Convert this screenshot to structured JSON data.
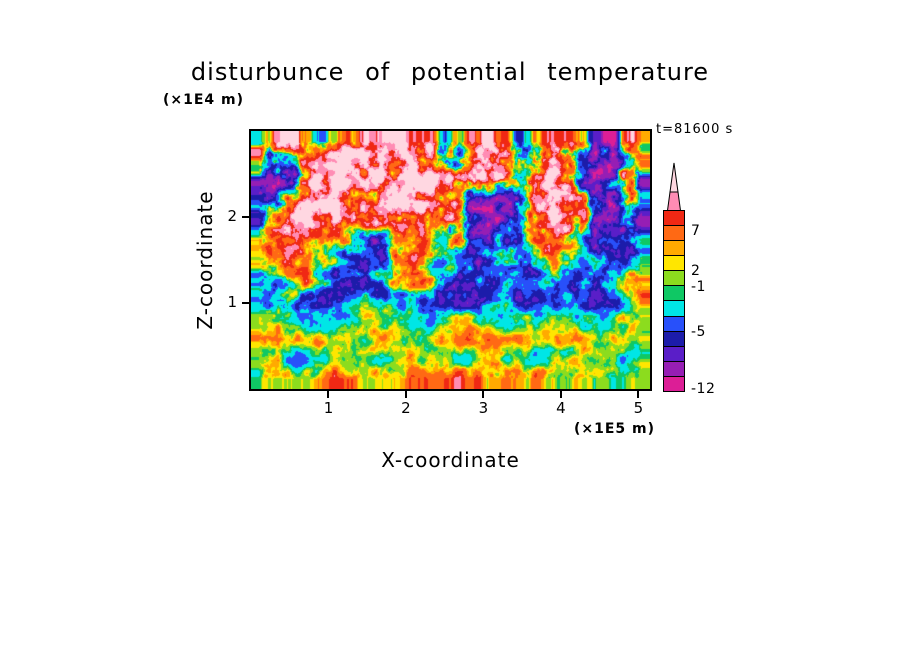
{
  "chart_data": {
    "type": "heatmap",
    "title": "disturbunce of potential temperature",
    "annotation": "t=81600 s",
    "xlabel": "X-coordinate",
    "x_unit": "(×1E5 m)",
    "ylabel": "Z-coordinate",
    "y_unit": "(×1E4 m)",
    "x_range": [
      0,
      5.15
    ],
    "y_range": [
      0,
      3.0
    ],
    "x_ticks": [
      "1",
      "2",
      "3",
      "4",
      "5"
    ],
    "x_tick_values": [
      1,
      2,
      3,
      4,
      5
    ],
    "y_ticks": [
      "1",
      "2"
    ],
    "y_tick_values": [
      1,
      2
    ],
    "levels": [
      -12,
      -9,
      -7,
      -5,
      -3,
      -1,
      0,
      1,
      2,
      3,
      5,
      7,
      9
    ],
    "colors": [
      "#DC1E96",
      "#961EB4",
      "#5A1EC8",
      "#1C1CAA",
      "#2850FA",
      "#00E6E6",
      "#0FC864",
      "#8CDC1E",
      "#FFE600",
      "#FFAA00",
      "#FF6914",
      "#F02814",
      "#FF8CB4",
      "#FFD7E1"
    ],
    "colorbar_labels": [
      {
        "text": "7",
        "pos": 0.12
      },
      {
        "text": "2",
        "pos": 0.345
      },
      {
        "text": "-1",
        "pos": 0.435
      },
      {
        "text": "-5",
        "pos": 0.685
      },
      {
        "text": "-12",
        "pos": 1.0
      }
    ],
    "grid_description": "coarse disturbance field, rows top(z=3.0) to bottom(z=0), 26 columns x=0..5.15",
    "grid": [
      [
        2,
        4,
        10,
        3,
        -3,
        5,
        8,
        7,
        9,
        12,
        8,
        5,
        -3,
        2,
        8,
        10,
        5,
        -2,
        4,
        7,
        8,
        4,
        -6,
        -9,
        3,
        6
      ],
      [
        4,
        -5,
        -8,
        3,
        6,
        9,
        12,
        8,
        6,
        10,
        13,
        7,
        -2,
        -5,
        6,
        9,
        7,
        -3,
        3,
        6,
        4,
        -5,
        -9,
        -8,
        -4,
        5
      ],
      [
        -5,
        -9,
        -7,
        5,
        9,
        12,
        8,
        6,
        9,
        7,
        10,
        13,
        8,
        4,
        7,
        10,
        5,
        -2,
        6,
        8,
        4,
        -6,
        -9,
        -5,
        4,
        -6
      ],
      [
        -7,
        -4,
        5,
        9,
        12,
        8,
        6,
        4,
        7,
        9,
        11,
        8,
        5,
        6,
        -7,
        -10,
        -8,
        -6,
        5,
        9,
        7,
        3,
        -4,
        -8,
        3,
        -5
      ],
      [
        -5,
        3,
        7,
        8,
        6,
        7,
        4,
        6,
        8,
        6,
        7,
        5,
        3,
        5,
        -9,
        -11,
        -8,
        -4,
        4,
        10,
        8,
        4,
        -6,
        -9,
        -4,
        -8
      ],
      [
        3,
        5,
        6,
        4,
        5,
        3,
        2,
        -5,
        -7,
        4,
        3,
        5,
        -2,
        3,
        -5,
        -7,
        -4,
        -2,
        3,
        6,
        4,
        -2,
        -5,
        -4,
        -6,
        -5
      ],
      [
        4,
        3,
        4,
        5,
        2,
        -2,
        -4,
        -6,
        -5,
        3,
        4,
        2,
        -4,
        -3,
        -5,
        -4,
        -2,
        -4,
        -3,
        3,
        -2,
        -4,
        -3,
        -5,
        -4,
        -3
      ],
      [
        -2,
        -3,
        2,
        4,
        -2,
        -4,
        -5,
        -4,
        -2,
        3,
        4,
        3,
        -5,
        -7,
        -6,
        -4,
        -3,
        -5,
        -6,
        -4,
        -3,
        -4,
        -5,
        -3,
        2,
        4
      ],
      [
        -3,
        -4,
        -2,
        -5,
        -7,
        -6,
        -4,
        -2,
        -3,
        -4,
        -2,
        -4,
        -7,
        -8,
        -7,
        -5,
        -3,
        -7,
        -8,
        -6,
        -4,
        -5,
        -7,
        -6,
        -2,
        3
      ],
      [
        0,
        1,
        0,
        -2,
        -3,
        -2,
        0,
        1,
        1,
        0,
        -2,
        -3,
        0,
        1,
        0,
        -2,
        -3,
        -2,
        0,
        1,
        0,
        -2,
        -2,
        0,
        1,
        1
      ],
      [
        2,
        3,
        1,
        2,
        3,
        1,
        2,
        1,
        3,
        2,
        1,
        0,
        2,
        3,
        4,
        4,
        3,
        3,
        2,
        1,
        2,
        1,
        0,
        1,
        2,
        0
      ],
      [
        0,
        1,
        -2,
        -4,
        -2,
        0,
        1,
        0,
        -2,
        0,
        1,
        0,
        0,
        -3,
        0,
        1,
        0,
        0,
        -2,
        0,
        0,
        1,
        0,
        0,
        -2,
        0
      ],
      [
        1,
        2,
        2,
        1,
        3,
        5,
        3,
        2,
        1,
        2,
        4,
        6,
        5,
        7,
        5,
        3,
        2,
        3,
        4,
        2,
        1,
        2,
        1,
        0,
        1,
        0
      ]
    ]
  }
}
